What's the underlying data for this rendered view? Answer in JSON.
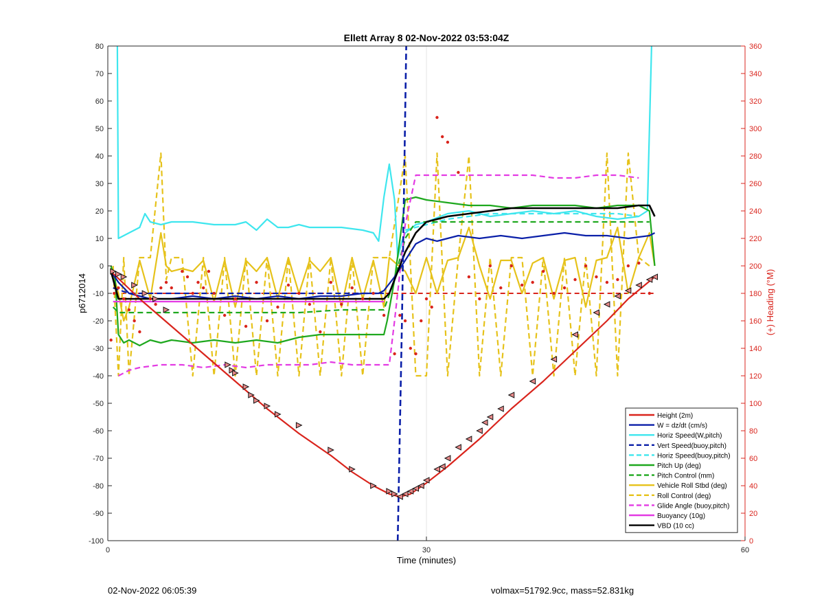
{
  "footer": {
    "timestamp": "02-Nov-2022 06:05:39",
    "stats": "volmax=51792.9cc, mass=52.831kg"
  },
  "chart_data": {
    "type": "line",
    "title": "Ellett Array 8 02-Nov-2022 03:53:04Z",
    "xlabel": "Time (minutes)",
    "ylabel": "p6712014",
    "ylabel_right": "(+) Heading (°M)",
    "xlim": [
      0,
      60
    ],
    "ylim": [
      -100,
      80
    ],
    "ylim_right": [
      0,
      360
    ],
    "x_ticks": [
      0,
      30,
      60
    ],
    "y_ticks": [
      -100,
      -90,
      -80,
      -70,
      -60,
      -50,
      -40,
      -30,
      -20,
      -10,
      0,
      10,
      20,
      30,
      40,
      50,
      60,
      70,
      80
    ],
    "y_ticks_right": [
      0,
      20,
      40,
      60,
      80,
      100,
      120,
      140,
      160,
      180,
      200,
      220,
      240,
      260,
      280,
      300,
      320,
      340,
      360
    ],
    "grid": "x-only",
    "legend_position": "bottom-right",
    "colors": {
      "height": "#d9241c",
      "w": "#0a1fa8",
      "horiz": "#3ee6ee",
      "pitch": "#1ea81e",
      "roll": "#e6c21a",
      "glide": "#e33ae3",
      "vbd": "#000000",
      "heading": "#d9241c"
    },
    "series": [
      {
        "name": "Height (2m)",
        "color": "#d9241c",
        "dash": "solid",
        "x": [
          0.3,
          3,
          6,
          9,
          12,
          15,
          18,
          21,
          23,
          25,
          26.5,
          27.5,
          28.5,
          30,
          32,
          35,
          38,
          41,
          44,
          47,
          49,
          51.5
        ],
        "y": [
          -2,
          -12,
          -22,
          -32,
          -42,
          -52,
          -61,
          -69,
          -75,
          -80,
          -83,
          -84,
          -83,
          -79,
          -73,
          -63,
          -52,
          -42,
          -31,
          -20,
          -12,
          -4
        ]
      },
      {
        "name": "W = dz/dt (cm/s)",
        "color": "#0a1fa8",
        "dash": "solid",
        "x": [
          0.3,
          1,
          2,
          4,
          6,
          8,
          10,
          12,
          14,
          16,
          18,
          20,
          22,
          24,
          25.5,
          26,
          27,
          28,
          29,
          30,
          31,
          33,
          35,
          37,
          39,
          41,
          43,
          45,
          47,
          49,
          51,
          51.5
        ],
        "y": [
          -2,
          -6,
          -10,
          -12,
          -12,
          -11,
          -12,
          -11,
          -12,
          -11,
          -12,
          -11,
          -11,
          -10,
          -10,
          -9,
          -4,
          2,
          8,
          10,
          9,
          11,
          10,
          11,
          10,
          11,
          12,
          11,
          11,
          10,
          11,
          12
        ]
      },
      {
        "name": "Horiz Speed(W,pitch)",
        "color": "#3ee6ee",
        "dash": "solid",
        "x": [
          0.9,
          1,
          1.5,
          2,
          3,
          3.5,
          4,
          5,
          6,
          8,
          10,
          12,
          13,
          14,
          15,
          16,
          17,
          18,
          19,
          20,
          22,
          24,
          25,
          25.5,
          26,
          26.5,
          27,
          27.3,
          27.7,
          28,
          29,
          30,
          32,
          34,
          36,
          38,
          40,
          42,
          44,
          46,
          48,
          50,
          50.8,
          51.2
        ],
        "y": [
          80,
          10,
          11,
          12,
          14,
          19,
          16,
          15,
          16,
          16,
          15,
          15,
          16,
          13,
          17,
          14,
          14,
          15,
          14,
          14,
          14,
          13,
          12,
          9,
          25,
          37,
          24,
          3,
          9,
          12,
          15,
          16,
          19,
          20,
          18,
          19,
          20,
          19,
          20,
          18,
          17,
          18,
          20,
          80
        ]
      },
      {
        "name": "Vert Speed(buoy,pitch)",
        "color": "#0a1fa8",
        "dash": "dashed",
        "x": [
          0.5,
          2,
          4,
          6,
          8,
          10,
          12,
          14,
          16,
          18,
          20,
          22,
          24,
          26
        ],
        "y": [
          -8,
          -10,
          -10,
          -10,
          -10,
          -10,
          -10,
          -10,
          -10,
          -10,
          -10,
          -10,
          -10,
          -10
        ]
      },
      {
        "name": "Horiz Speed(buoy,pitch)",
        "color": "#3ee6ee",
        "dash": "dashed",
        "x": [
          28,
          30,
          32,
          34,
          36,
          38,
          40,
          42,
          44,
          46,
          48,
          50
        ],
        "y": [
          13,
          15,
          17,
          18,
          19,
          19,
          19,
          19,
          19,
          19,
          19,
          18
        ]
      },
      {
        "name": "Pitch Up (deg)",
        "color": "#1ea81e",
        "dash": "solid",
        "x": [
          0.3,
          0.7,
          1,
          1.5,
          2,
          3,
          4,
          5,
          6,
          8,
          10,
          12,
          14,
          16,
          18,
          20,
          22,
          24,
          26,
          26.3,
          27,
          28,
          29,
          30,
          32,
          34,
          36,
          38,
          40,
          42,
          44,
          46,
          48,
          50,
          51,
          51.5
        ],
        "y": [
          0,
          -5,
          -25,
          -28,
          -27,
          -29,
          -27,
          -28,
          -27,
          -28,
          -27,
          -28,
          -27,
          -28,
          -26,
          -25,
          -25,
          -25,
          -25,
          -20,
          -5,
          24,
          25,
          24,
          23,
          22,
          22,
          21,
          22,
          22,
          22,
          21,
          22,
          22,
          20,
          0
        ]
      },
      {
        "name": "Pitch Control (mm)",
        "color": "#1ea81e",
        "dash": "dashed",
        "x": [
          0.5,
          1,
          3,
          6,
          10,
          14,
          18,
          22,
          26,
          27,
          28,
          29,
          32,
          36,
          40,
          44,
          48,
          51
        ],
        "y": [
          -15,
          -17,
          -17,
          -17,
          -17,
          -17,
          -17,
          -16,
          -16,
          -5,
          10,
          16,
          16,
          16,
          16,
          16,
          16,
          16
        ]
      },
      {
        "name": "Vehicle Roll Stbd (deg)",
        "color": "#e6c21a",
        "dash": "solid",
        "x": [
          0.3,
          1,
          1.5,
          2,
          3,
          4,
          5,
          5.5,
          6,
          7,
          8,
          9,
          10,
          11,
          12,
          13,
          14,
          15,
          16,
          17,
          18,
          19,
          20,
          21,
          22,
          23,
          24,
          25,
          26,
          26.5,
          28,
          29,
          30,
          31,
          32,
          33,
          34,
          35,
          36,
          37,
          38,
          39,
          40,
          41,
          42,
          43,
          44,
          45,
          46,
          47,
          48,
          49,
          50,
          51,
          51.5
        ],
        "y": [
          0,
          -10,
          -20,
          -15,
          2,
          -12,
          12,
          0,
          -2,
          -1,
          -2,
          2,
          -13,
          2,
          -15,
          2,
          -2,
          3,
          -12,
          3,
          -10,
          2,
          -2,
          3,
          -15,
          3,
          -12,
          2,
          -15,
          3,
          -2,
          -10,
          3,
          -10,
          2,
          3,
          14,
          0,
          -12,
          2,
          2,
          -10,
          1,
          3,
          -12,
          2,
          3,
          -15,
          2,
          3,
          14,
          -10,
          3,
          12,
          0
        ]
      },
      {
        "name": "Roll Control (deg)",
        "color": "#e6c21a",
        "dash": "dashed",
        "x": [
          0.5,
          1,
          1.5,
          2,
          3,
          4,
          5,
          5.5,
          6,
          7,
          8,
          9,
          10,
          11,
          12,
          13,
          14,
          15,
          16,
          17,
          18,
          19,
          20,
          21,
          22,
          23,
          24,
          25,
          26,
          26.5,
          28,
          29,
          30,
          31,
          32,
          33,
          34,
          35,
          36,
          37,
          38,
          39,
          40,
          41,
          42,
          43,
          44,
          45,
          46,
          47,
          48,
          49,
          50,
          51
        ],
        "y": [
          0,
          -40,
          3,
          -40,
          3,
          3,
          41,
          -5,
          3,
          3,
          -40,
          3,
          -40,
          3,
          -40,
          3,
          -40,
          3,
          -40,
          3,
          -40,
          3,
          -40,
          3,
          -40,
          3,
          -40,
          3,
          3,
          3,
          40,
          -40,
          -40,
          41,
          -40,
          3,
          40,
          -40,
          3,
          -40,
          3,
          3,
          -40,
          3,
          -40,
          3,
          -40,
          3,
          -40,
          41,
          -40,
          41,
          3,
          0
        ]
      },
      {
        "name": "Glide Angle (buoy,pitch)",
        "color": "#e33ae3",
        "dash": "dashed",
        "x": [
          1,
          2,
          3,
          5,
          7,
          9,
          11,
          13,
          15,
          17,
          19,
          21,
          23,
          25,
          26.5,
          27,
          28,
          29,
          30,
          32,
          34,
          36,
          38,
          40,
          42,
          44,
          46,
          48,
          50
        ],
        "y": [
          -40,
          -38,
          -37,
          -36,
          -36,
          -37,
          -36,
          -37,
          -36,
          -36,
          -36,
          -35,
          -36,
          -36,
          -36,
          -20,
          15,
          33,
          33,
          33,
          33,
          33,
          33,
          33,
          32,
          32,
          33,
          33,
          32
        ]
      },
      {
        "name": "Buoyancy (10g)",
        "color": "#e33ae3",
        "dash": "solid",
        "x": [
          0.5,
          1,
          3,
          6,
          10,
          14,
          18,
          22,
          26
        ],
        "y": [
          -13,
          -13,
          -13,
          -13,
          -13,
          -13,
          -13,
          -13,
          -13
        ]
      },
      {
        "name": "VBD (10 cc)",
        "color": "#000000",
        "dash": "solid",
        "x": [
          0.3,
          1,
          3,
          6,
          10,
          14,
          18,
          22,
          26,
          26.5,
          27,
          28,
          29,
          30,
          32,
          34,
          36,
          38,
          40,
          42,
          44,
          46,
          48,
          50,
          51,
          51.5
        ],
        "y": [
          -2,
          -12,
          -12,
          -12,
          -12,
          -12,
          -12,
          -12,
          -12,
          -10,
          -5,
          5,
          12,
          16,
          18,
          19,
          20,
          21,
          21,
          21,
          21,
          21,
          21,
          22,
          22,
          18
        ]
      }
    ],
    "heading_dashed": {
      "x": [
        0.5,
        4,
        8,
        12,
        16,
        20,
        24,
        26,
        27,
        29,
        32,
        36,
        40,
        44,
        48,
        51.5
      ],
      "y": [
        -10,
        -10,
        -10,
        -10,
        -10,
        -10,
        -10,
        -10,
        -10,
        -10,
        -10,
        -10,
        -10,
        -10,
        -10,
        -10
      ]
    },
    "vert_speed_spike": {
      "x": [
        27.3,
        27.7,
        28.1
      ],
      "y": [
        -100,
        -20,
        80
      ]
    },
    "heading_points": {
      "x": [
        0.3,
        0.6,
        1,
        1.5,
        2,
        2.5,
        3,
        3.5,
        4,
        4.5,
        5,
        5.5,
        6,
        7,
        7.5,
        8,
        8.5,
        9,
        9.5,
        10,
        11,
        12,
        13,
        14,
        15,
        16,
        17,
        18,
        19,
        20,
        21,
        22,
        23,
        24,
        25,
        26,
        27,
        27.5,
        28,
        28.5,
        29,
        29.5,
        30,
        30.5,
        31,
        31.5,
        32,
        33,
        34,
        35,
        36,
        37,
        38,
        39,
        40,
        41,
        42,
        43,
        44,
        45,
        46,
        47,
        48,
        49,
        50,
        51
      ],
      "y": [
        -27,
        -10,
        -8,
        -12,
        -16,
        -20,
        -24,
        -10,
        -12,
        -14,
        -8,
        -6,
        -8,
        -2,
        -4,
        -10,
        -6,
        -8,
        -2,
        -10,
        -18,
        -12,
        -22,
        -6,
        -20,
        -15,
        -7,
        -10,
        -14,
        -24,
        -6,
        -14,
        -8,
        -12,
        -10,
        -18,
        -32,
        -18,
        -20,
        -30,
        -32,
        -20,
        -12,
        -15,
        54,
        47,
        45,
        34,
        -4,
        -12,
        0,
        -8,
        0,
        -7,
        -6,
        -2,
        -10,
        -8,
        -5,
        0,
        -4,
        -6,
        -5,
        0,
        1,
        -10
      ]
    },
    "marker_points": {
      "x": [
        0.5,
        1,
        1.5,
        2.5,
        3.5,
        4.5,
        5.5,
        11.3,
        11.7,
        12,
        13,
        13.5,
        14,
        15,
        16,
        18,
        21,
        23,
        25,
        26.5,
        27,
        27.5,
        28,
        28.5,
        29,
        29.5,
        30,
        31,
        31.5,
        32,
        33,
        34,
        35,
        35.5,
        36,
        37,
        38,
        40,
        42,
        44,
        46,
        47,
        48,
        49,
        50,
        51,
        51.5
      ],
      "y": [
        -2,
        -3,
        -4,
        -7,
        -10,
        -12,
        -16,
        -36,
        -38,
        -39,
        -44,
        -47,
        -49,
        -51,
        -54,
        -58,
        -67,
        -74,
        -80,
        -82,
        -83,
        -84,
        -83,
        -82,
        -81,
        -80,
        -78,
        -74,
        -73,
        -70,
        -66,
        -63,
        -60,
        -57,
        -55,
        -52,
        -47,
        -42,
        -34,
        -25,
        -17,
        -14,
        -11,
        -9,
        -7,
        -5,
        -4
      ]
    }
  }
}
